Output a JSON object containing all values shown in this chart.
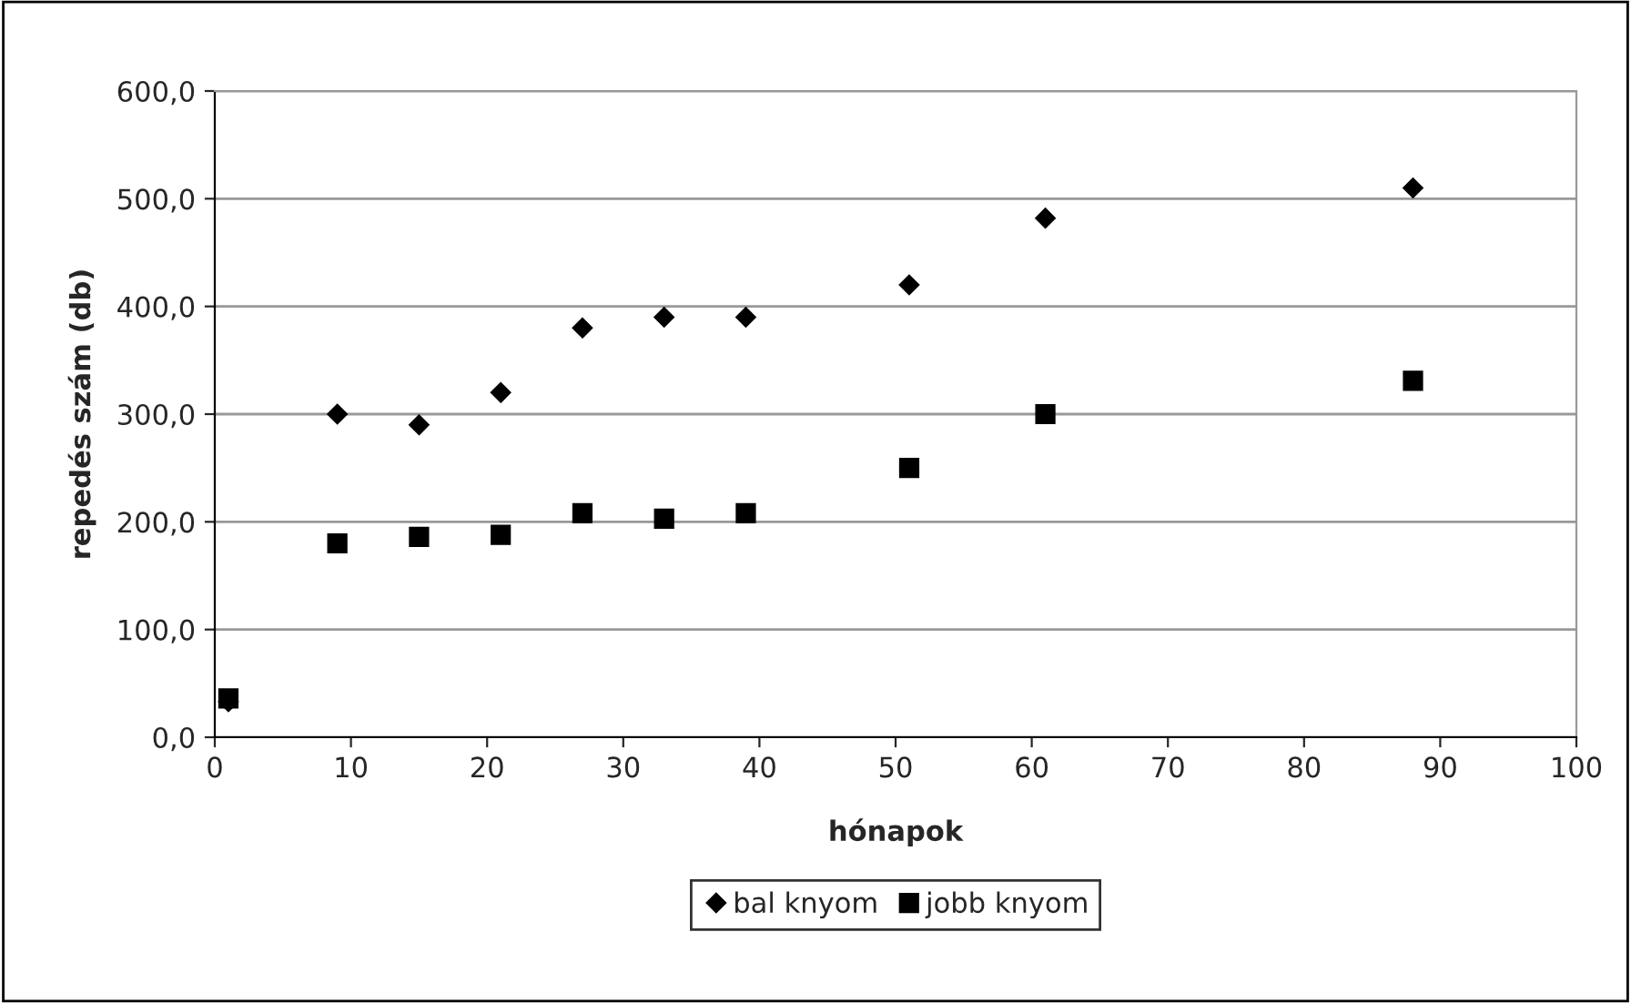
{
  "chart_data": {
    "type": "scatter",
    "xlabel": "hónapok",
    "ylabel": "repedés szám (db)",
    "xlim": [
      0,
      100
    ],
    "xticks": [
      0,
      10,
      20,
      30,
      40,
      50,
      60,
      70,
      80,
      90,
      100
    ],
    "ylim": [
      0,
      600
    ],
    "yticks": [
      {
        "value": 0,
        "label": "0,0"
      },
      {
        "value": 100,
        "label": "100,0"
      },
      {
        "value": 200,
        "label": "200,0"
      },
      {
        "value": 300,
        "label": "300,0"
      },
      {
        "value": 400,
        "label": "400,0"
      },
      {
        "value": 500,
        "label": "500,0"
      },
      {
        "value": 600,
        "label": "600,0"
      }
    ],
    "grid": "y",
    "legend": "bottom",
    "series": [
      {
        "name": "bal knyom",
        "color": "#000000",
        "marker": "diamond",
        "x": [
          1,
          9,
          15,
          21,
          27,
          33,
          39,
          51,
          61,
          88
        ],
        "values": [
          33,
          300,
          290,
          320,
          380,
          390,
          390,
          420,
          482,
          510
        ]
      },
      {
        "name": "jobb knyom",
        "color": "#000000",
        "marker": "square",
        "x": [
          1,
          9,
          15,
          21,
          27,
          33,
          39,
          51,
          61,
          88
        ],
        "values": [
          36,
          180,
          186,
          188,
          208,
          203,
          208,
          250,
          300,
          331
        ]
      }
    ]
  }
}
